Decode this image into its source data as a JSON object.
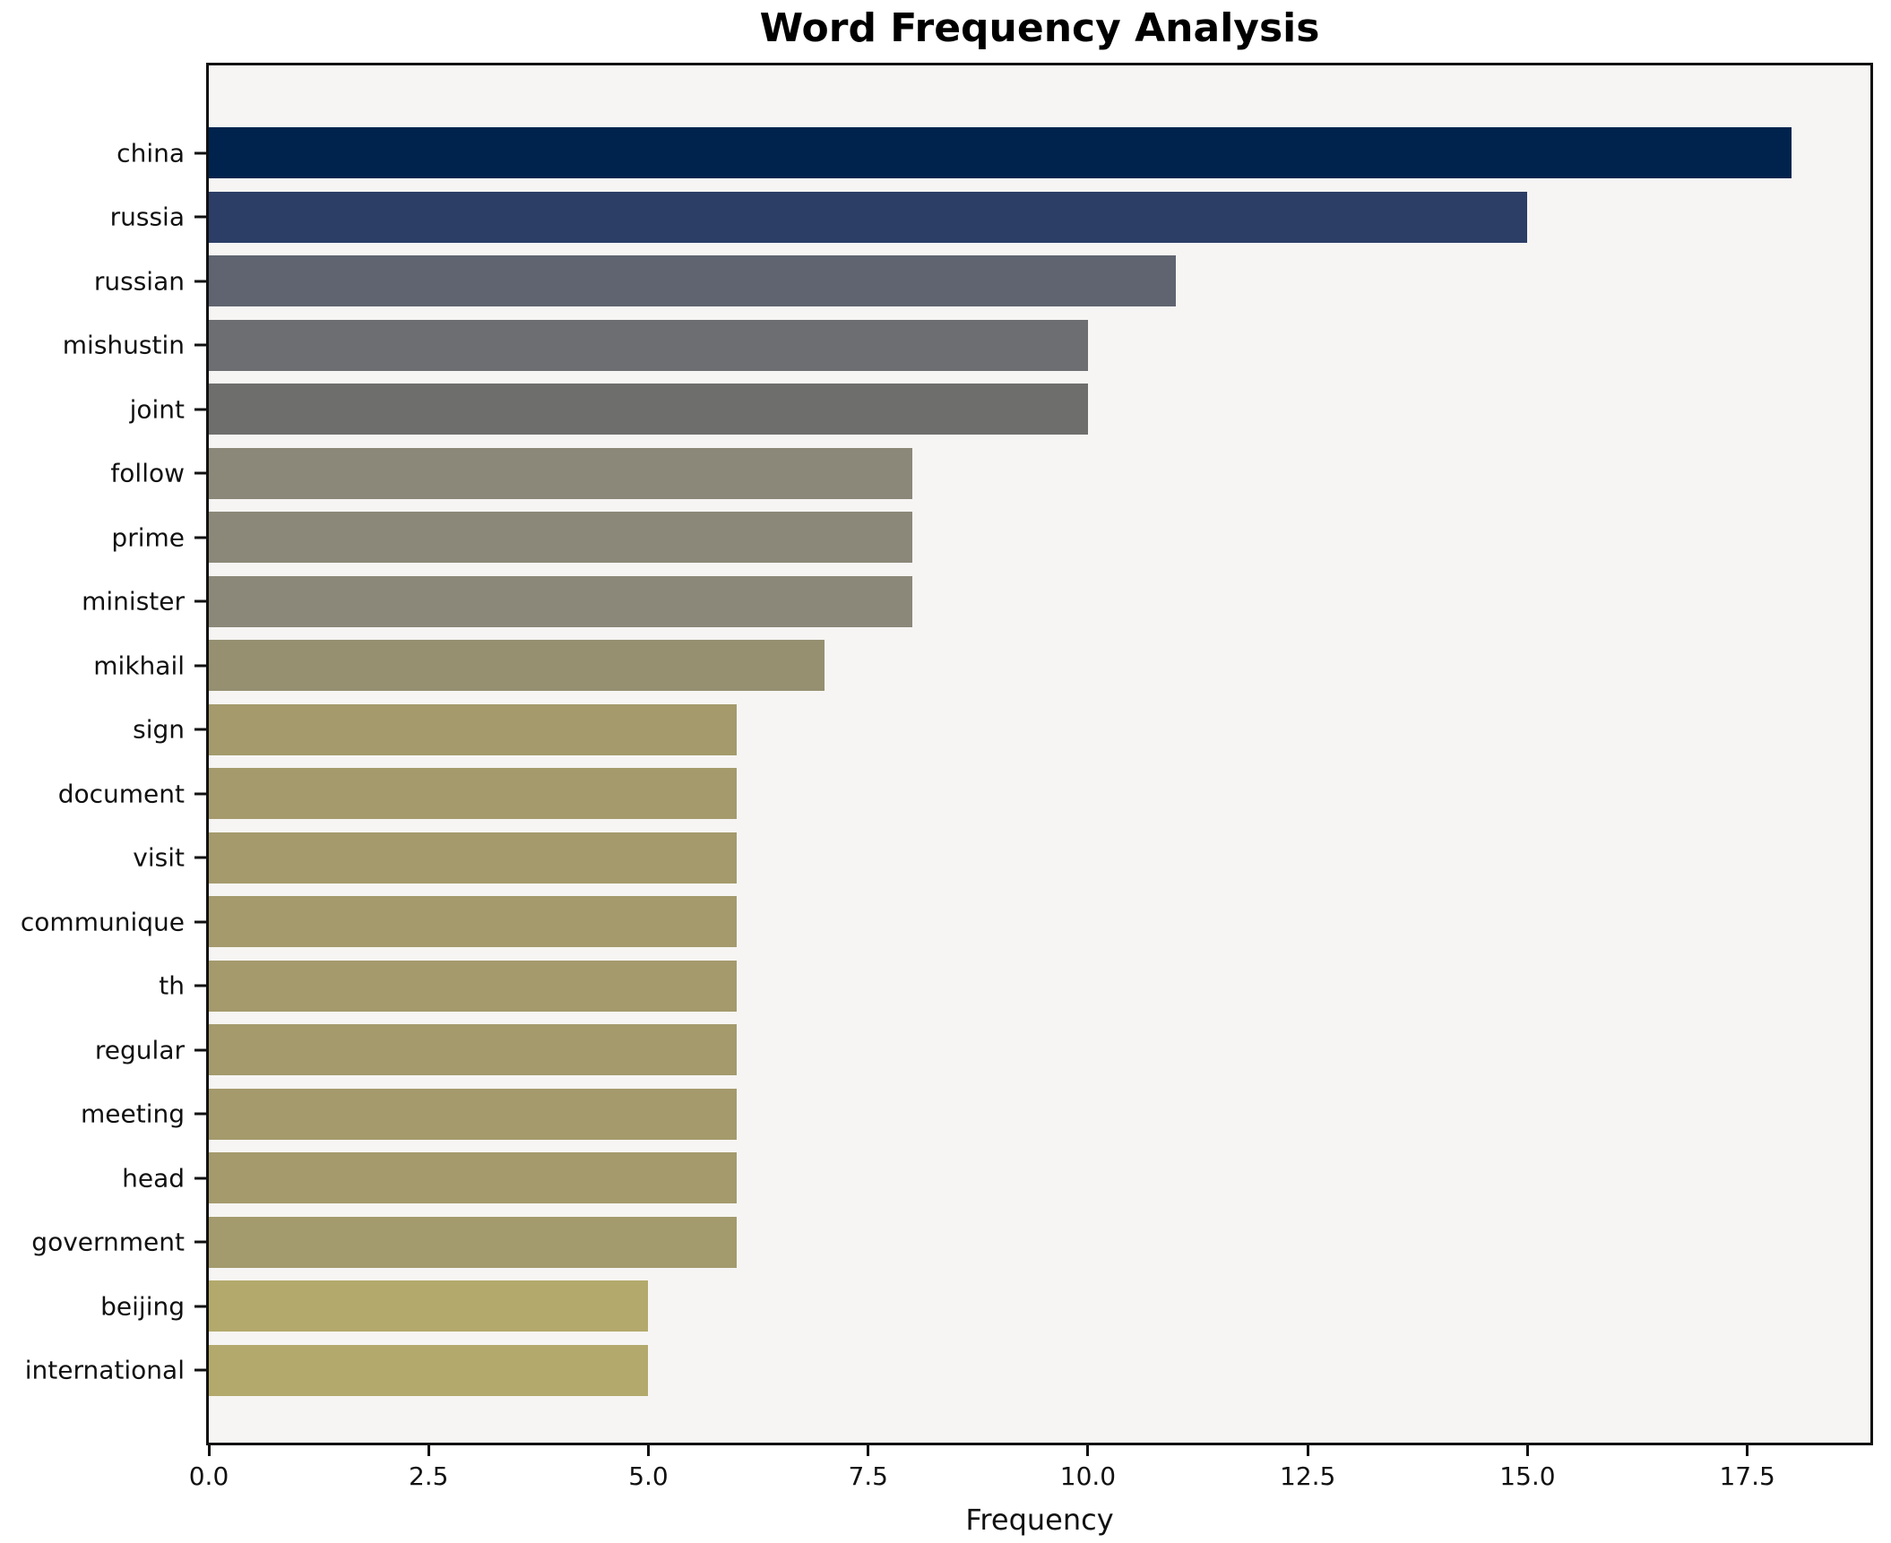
{
  "figure": {
    "background": "#ffffff",
    "plot_background": "#f6f5f3",
    "spine_color": "#111111",
    "text_color": "#111111"
  },
  "chart_data": {
    "type": "bar",
    "orientation": "horizontal",
    "title": "Word Frequency Analysis",
    "xlabel": "Frequency",
    "ylabel": "",
    "xlim": [
      0,
      18.9
    ],
    "grid": false,
    "xticks": [
      {
        "value": 0,
        "label": "0.0"
      },
      {
        "value": 2.5,
        "label": "2.5"
      },
      {
        "value": 5,
        "label": "5.0"
      },
      {
        "value": 7.5,
        "label": "7.5"
      },
      {
        "value": 10,
        "label": "10.0"
      },
      {
        "value": 12.5,
        "label": "12.5"
      },
      {
        "value": 15,
        "label": "15.0"
      },
      {
        "value": 17.5,
        "label": "17.5"
      }
    ],
    "categories": [
      "china",
      "russia",
      "russian",
      "mishustin",
      "joint",
      "follow",
      "prime",
      "minister",
      "mikhail",
      "sign",
      "document",
      "visit",
      "communique",
      "th",
      "regular",
      "meeting",
      "head",
      "government",
      "beijing",
      "international"
    ],
    "values": [
      18,
      15,
      11,
      10,
      10,
      8,
      8,
      8,
      7,
      6,
      6,
      6,
      6,
      6,
      6,
      6,
      6,
      6,
      5,
      5
    ],
    "bar_colors": [
      "#00234d",
      "#2c3e66",
      "#5f6470",
      "#6d6e71",
      "#6e6f6c",
      "#8b8879",
      "#8b8879",
      "#8b8879",
      "#969071",
      "#a49a6c",
      "#a49a6c",
      "#a49a6c",
      "#a49a6c",
      "#a49a6c",
      "#a49a6c",
      "#a49a6c",
      "#a49a6c",
      "#a39a6d",
      "#b3a96c",
      "#b3a96c"
    ]
  }
}
